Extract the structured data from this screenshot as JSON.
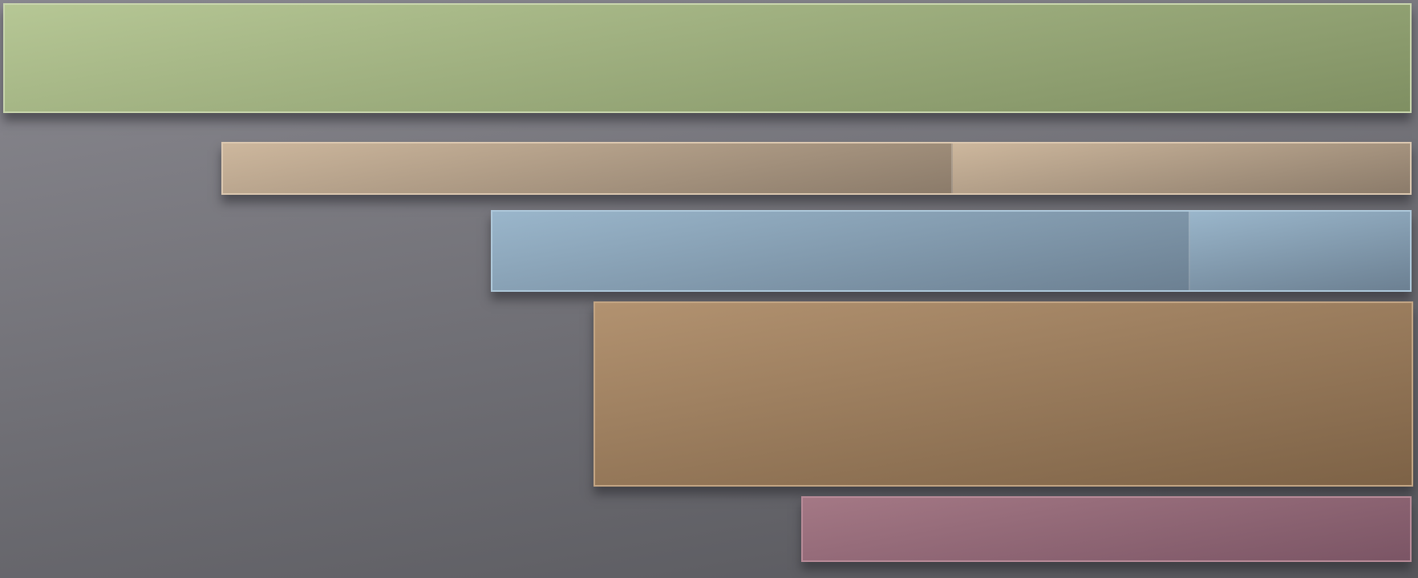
{
  "theme": {
    "background_top": "#8a8990",
    "background_bottom": "#57575c"
  },
  "blocks": [
    {
      "id": "green",
      "segments": 1,
      "colors": {
        "light": "#b6c795",
        "dark": "#7f8f62",
        "border": "#c9d6ad"
      }
    },
    {
      "id": "tan",
      "segments": 2,
      "colors": {
        "light": "#cdb79d",
        "dark": "#8b7b6a",
        "border": "#dcc8b0"
      }
    },
    {
      "id": "blue",
      "segments": 2,
      "colors": {
        "light": "#9ab6cb",
        "dark": "#6c8092",
        "border": "#aec8da"
      }
    },
    {
      "id": "brown",
      "segments": 1,
      "colors": {
        "light": "#b29270",
        "dark": "#7d6246",
        "border": "#c3a584"
      }
    },
    {
      "id": "mauve",
      "segments": 1,
      "colors": {
        "light": "#a47885",
        "dark": "#7b5565",
        "border": "#b88b98"
      }
    }
  ]
}
